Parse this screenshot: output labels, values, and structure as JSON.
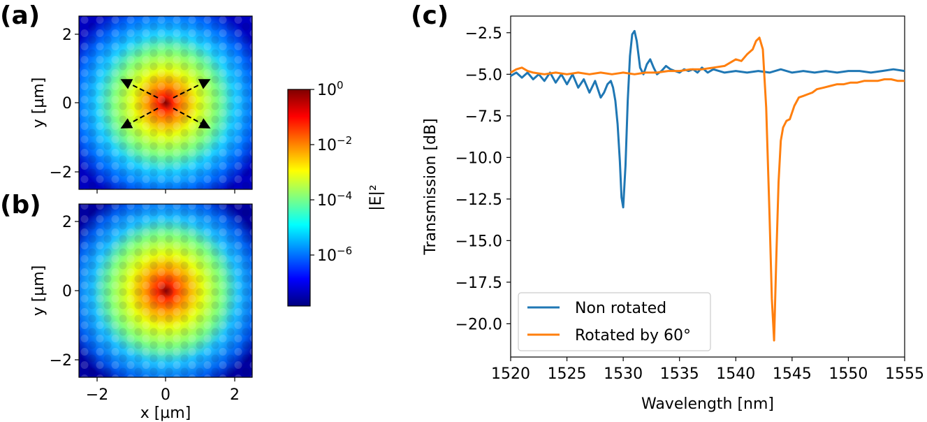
{
  "panels": {
    "a": {
      "label": "(a)"
    },
    "b": {
      "label": "(b)"
    },
    "c": {
      "label": "(c)"
    }
  },
  "maps": {
    "xlabel": "x [µm]",
    "ylabel": "y [µm]",
    "xticks": [
      "−2",
      "0",
      "2"
    ],
    "yticks": [
      "2",
      "0",
      "−2"
    ],
    "xlim": [
      -2.5,
      2.5
    ],
    "ylim": [
      -2.5,
      2.5
    ]
  },
  "colorbar": {
    "label": "|E|²",
    "ticks": [
      {
        "base": "10",
        "exp": "0"
      },
      {
        "base": "10",
        "exp": "−2"
      },
      {
        "base": "10",
        "exp": "−4"
      },
      {
        "base": "10",
        "exp": "−6"
      }
    ],
    "colors": [
      "#00007f",
      "#0000ff",
      "#0080ff",
      "#00ffff",
      "#80ff80",
      "#ffff00",
      "#ff8000",
      "#ff0000",
      "#7f0000"
    ]
  },
  "chart_data": {
    "type": "line",
    "xlabel": "Wavelength [nm]",
    "ylabel": "Transmission [dB]",
    "xlim": [
      1520,
      1555
    ],
    "ylim": [
      -22,
      -1.5
    ],
    "xticks": [
      1520,
      1525,
      1530,
      1535,
      1540,
      1545,
      1550,
      1555
    ],
    "yticks": [
      -2.5,
      -5.0,
      -7.5,
      -10.0,
      -12.5,
      -15.0,
      -17.5,
      -20.0
    ],
    "legend_position": "lower-left",
    "series": [
      {
        "name": "Non rotated",
        "color": "#1f77b4",
        "x": [
          1520,
          1520.5,
          1521,
          1521.5,
          1522,
          1522.5,
          1523,
          1523.5,
          1524,
          1524.5,
          1525,
          1525.5,
          1526,
          1526.5,
          1527,
          1527.5,
          1528,
          1528.3,
          1528.6,
          1528.9,
          1529.1,
          1529.3,
          1529.5,
          1529.7,
          1529.85,
          1530,
          1530.2,
          1530.4,
          1530.6,
          1530.8,
          1531.0,
          1531.2,
          1531.5,
          1531.8,
          1532.1,
          1532.4,
          1532.7,
          1533.0,
          1533.4,
          1533.8,
          1534.2,
          1534.6,
          1535.0,
          1535.4,
          1535.8,
          1536.2,
          1536.6,
          1537.0,
          1537.5,
          1538,
          1539,
          1540,
          1541,
          1542,
          1543,
          1544,
          1545,
          1546,
          1547,
          1548,
          1549,
          1550,
          1551,
          1552,
          1553,
          1554,
          1555
        ],
        "y": [
          -5.1,
          -4.9,
          -5.2,
          -4.9,
          -5.3,
          -5.0,
          -5.4,
          -4.9,
          -5.5,
          -5.0,
          -5.6,
          -5.0,
          -5.8,
          -5.3,
          -6.1,
          -5.4,
          -6.4,
          -6.1,
          -5.6,
          -5.4,
          -5.8,
          -6.6,
          -8.0,
          -10.2,
          -12.4,
          -13.0,
          -10.5,
          -6.6,
          -3.9,
          -2.6,
          -2.4,
          -3.0,
          -4.6,
          -5.0,
          -4.4,
          -4.1,
          -4.6,
          -5.0,
          -4.8,
          -4.5,
          -4.7,
          -4.8,
          -4.9,
          -4.7,
          -4.8,
          -4.7,
          -4.9,
          -4.6,
          -4.9,
          -4.7,
          -4.9,
          -4.8,
          -4.9,
          -4.8,
          -4.9,
          -4.7,
          -4.9,
          -4.8,
          -4.9,
          -4.8,
          -4.9,
          -4.8,
          -4.8,
          -4.9,
          -4.8,
          -4.7,
          -4.8
        ]
      },
      {
        "name": "Rotated by 60°",
        "color": "#ff7f0e",
        "x": [
          1520,
          1520.5,
          1521,
          1521.5,
          1522,
          1523,
          1524,
          1525,
          1526,
          1527,
          1528,
          1529,
          1530,
          1531,
          1532,
          1533,
          1534,
          1535,
          1536,
          1537,
          1538,
          1539,
          1540,
          1540.5,
          1541,
          1541.5,
          1541.8,
          1542.1,
          1542.4,
          1542.7,
          1543.0,
          1543.2,
          1543.4,
          1543.6,
          1543.8,
          1544.0,
          1544.2,
          1544.5,
          1544.8,
          1545.2,
          1545.6,
          1546.0,
          1546.4,
          1546.8,
          1547.2,
          1547.8,
          1548.4,
          1549,
          1549.6,
          1550.2,
          1550.8,
          1551.4,
          1552,
          1552.6,
          1553.2,
          1553.8,
          1554.4,
          1555
        ],
        "y": [
          -4.9,
          -4.7,
          -4.6,
          -4.8,
          -4.9,
          -5.0,
          -4.9,
          -5.0,
          -4.9,
          -5.0,
          -4.9,
          -5.0,
          -4.9,
          -5.0,
          -4.9,
          -4.9,
          -4.8,
          -4.8,
          -4.7,
          -4.7,
          -4.6,
          -4.5,
          -4.1,
          -4.2,
          -3.8,
          -3.5,
          -3.0,
          -2.8,
          -3.5,
          -7.0,
          -13.5,
          -18.5,
          -21.0,
          -16.0,
          -11.5,
          -9.0,
          -8.2,
          -7.8,
          -7.7,
          -6.9,
          -6.4,
          -6.3,
          -6.2,
          -6.1,
          -5.9,
          -5.8,
          -5.7,
          -5.6,
          -5.6,
          -5.5,
          -5.5,
          -5.4,
          -5.4,
          -5.4,
          -5.3,
          -5.3,
          -5.4,
          -5.4
        ]
      }
    ]
  }
}
